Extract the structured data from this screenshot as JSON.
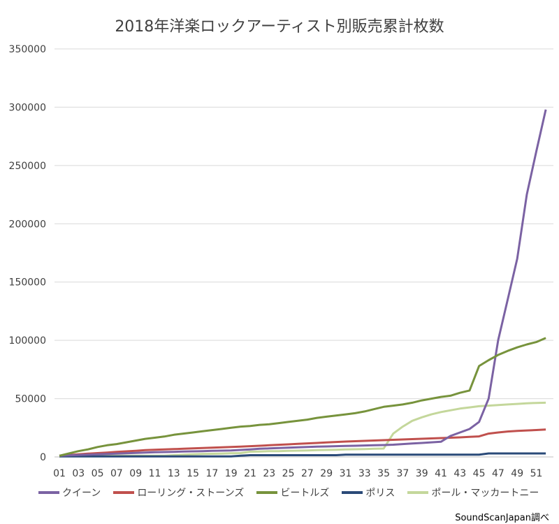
{
  "chart_data": {
    "type": "line",
    "title": "2018年洋楽ロックアーティスト別販売累計枚数",
    "xlabel": "",
    "ylabel": "",
    "ylim": [
      0,
      350000
    ],
    "yticks": [
      "0",
      "50000",
      "100000",
      "150000",
      "200000",
      "250000",
      "300000",
      "350000"
    ],
    "x": [
      "01",
      "02",
      "03",
      "04",
      "05",
      "06",
      "07",
      "08",
      "09",
      "10",
      "11",
      "12",
      "13",
      "14",
      "15",
      "16",
      "17",
      "18",
      "19",
      "20",
      "21",
      "22",
      "23",
      "24",
      "25",
      "26",
      "27",
      "28",
      "29",
      "30",
      "31",
      "32",
      "33",
      "34",
      "35",
      "36",
      "37",
      "38",
      "39",
      "40",
      "41",
      "42",
      "43",
      "44",
      "45",
      "46",
      "47",
      "48",
      "49",
      "50",
      "51",
      "52"
    ],
    "xticks": [
      "01",
      "03",
      "05",
      "07",
      "09",
      "11",
      "13",
      "15",
      "17",
      "19",
      "21",
      "23",
      "25",
      "27",
      "29",
      "31",
      "33",
      "35",
      "37",
      "39",
      "41",
      "43",
      "45",
      "47",
      "49",
      "51"
    ],
    "grid": true,
    "legend": "bottom",
    "series": [
      {
        "name": "クイーン",
        "color": "#7b62a3",
        "values": [
          1000,
          1300,
          1600,
          1900,
          2200,
          2500,
          2800,
          3100,
          3400,
          3700,
          4000,
          4200,
          4400,
          4600,
          4800,
          5000,
          5200,
          5400,
          5600,
          6000,
          6500,
          7000,
          7300,
          7600,
          7900,
          8200,
          8500,
          8800,
          9000,
          9200,
          9400,
          9600,
          9800,
          10000,
          10200,
          10500,
          11000,
          11500,
          12000,
          12500,
          13000,
          18000,
          21000,
          24000,
          30000,
          50000,
          100000,
          135000,
          170000,
          225000,
          262000,
          298000
        ]
      },
      {
        "name": "ローリング・ストーンズ",
        "color": "#c0504d",
        "values": [
          1000,
          1600,
          2200,
          2800,
          3300,
          3800,
          4300,
          4800,
          5300,
          5800,
          6100,
          6400,
          6700,
          7000,
          7300,
          7600,
          7900,
          8200,
          8500,
          8800,
          9200,
          9600,
          10000,
          10400,
          10800,
          11200,
          11600,
          12000,
          12400,
          12800,
          13200,
          13500,
          13800,
          14100,
          14400,
          14700,
          15000,
          15300,
          15600,
          15900,
          16200,
          16500,
          16800,
          17200,
          17600,
          20000,
          21000,
          21800,
          22300,
          22700,
          23100,
          23500
        ]
      },
      {
        "name": "ビートルズ",
        "color": "#77933c",
        "values": [
          1000,
          3000,
          5000,
          6500,
          8500,
          10000,
          11000,
          12500,
          14000,
          15500,
          16500,
          17500,
          19000,
          20000,
          21000,
          22000,
          23000,
          24000,
          25000,
          26000,
          26500,
          27500,
          28000,
          29000,
          30000,
          31000,
          32000,
          33500,
          34500,
          35500,
          36500,
          37500,
          39000,
          41000,
          43000,
          44000,
          45000,
          46500,
          48500,
          50000,
          51500,
          52500,
          55000,
          57000,
          78000,
          83000,
          87500,
          91000,
          94000,
          96500,
          98500,
          102000
        ]
      },
      {
        "name": "ポリス",
        "color": "#2a4a78",
        "values": [
          500,
          500,
          500,
          500,
          500,
          500,
          500,
          500,
          500,
          500,
          500,
          500,
          500,
          500,
          500,
          500,
          500,
          500,
          500,
          1000,
          1500,
          1500,
          1500,
          1500,
          1500,
          1500,
          1500,
          1500,
          1500,
          1500,
          2000,
          2000,
          2000,
          2000,
          2000,
          2000,
          2000,
          2000,
          2000,
          2000,
          2000,
          2000,
          2000,
          2000,
          2000,
          3000,
          3000,
          3000,
          3000,
          3000,
          3000,
          3000
        ]
      },
      {
        "name": "ポール・マッカートニー",
        "color": "#c4d79b",
        "values": [
          1000,
          1000,
          1000,
          1000,
          1000,
          1000,
          1000,
          1000,
          1000,
          1000,
          1000,
          1000,
          1500,
          2000,
          2200,
          2500,
          2700,
          2900,
          3100,
          3300,
          4500,
          4700,
          4900,
          5000,
          5200,
          5400,
          5600,
          5800,
          6000,
          6200,
          6400,
          6600,
          6800,
          7000,
          7200,
          20000,
          26000,
          31000,
          34000,
          36500,
          38500,
          40000,
          41500,
          42500,
          43500,
          44000,
          44500,
          45000,
          45500,
          46000,
          46300,
          46500
        ]
      }
    ]
  },
  "source": "SoundScanJapan調べ"
}
